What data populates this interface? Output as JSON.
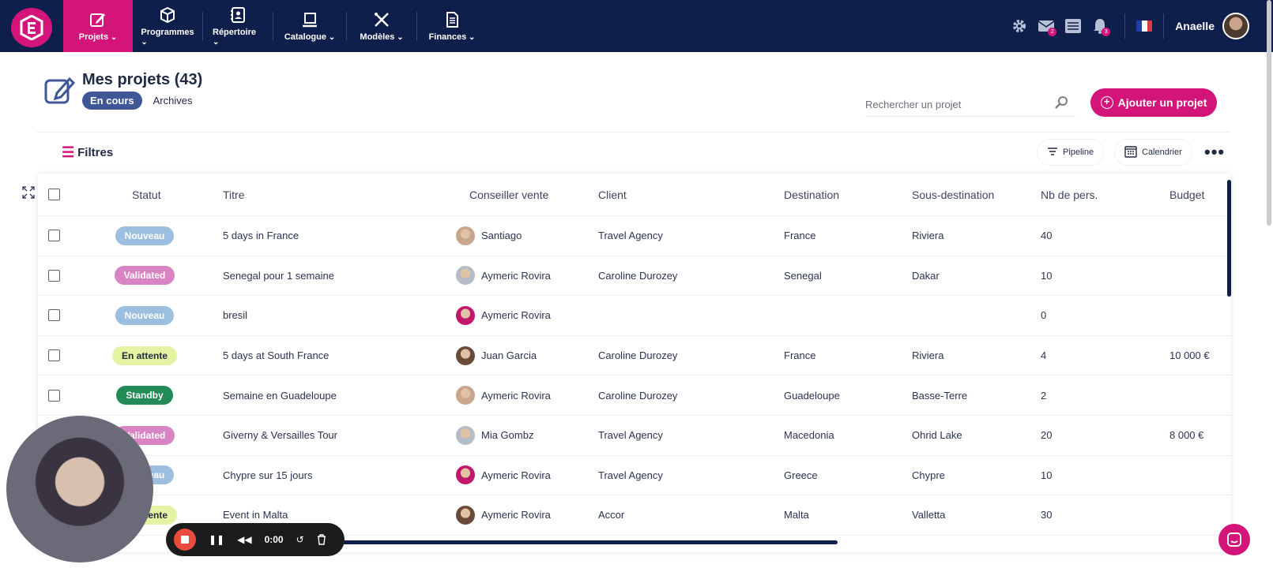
{
  "nav": {
    "items": [
      {
        "label": "Projets",
        "icon": "edit-icon"
      },
      {
        "label": "Programmes",
        "icon": "cube-icon"
      },
      {
        "label": "Répertoire",
        "icon": "address-book-icon"
      },
      {
        "label": "Catalogue",
        "icon": "laptop-icon"
      },
      {
        "label": "Modèles",
        "icon": "tools-icon"
      },
      {
        "label": "Finances",
        "icon": "document-icon"
      }
    ],
    "mail_badge": "2",
    "notif_badge": "3",
    "user_name": "Anaelle"
  },
  "page": {
    "title": "Mes projets (43)",
    "tab_active": "En cours",
    "tab_other": "Archives"
  },
  "search": {
    "placeholder": "Rechercher un projet"
  },
  "toolbar": {
    "add_label": "Ajouter un projet",
    "filters_label": "Filtres",
    "pipeline_label": "Pipeline",
    "calendar_label": "Calendrier"
  },
  "table": {
    "headers": {
      "status": "Statut",
      "title": "Titre",
      "advisor": "Conseiller vente",
      "client": "Client",
      "destination": "Destination",
      "subdestination": "Sous-destination",
      "people": "Nb de pers.",
      "budget": "Budget"
    },
    "rows": [
      {
        "status": "Nouveau",
        "status_color": "#9cbfe0",
        "title": "5 days in France",
        "advisor": "Santiago",
        "client": "Travel Agency",
        "destination": "France",
        "subdestination": "Riviera",
        "people": "40",
        "budget": ""
      },
      {
        "status": "Validated",
        "status_color": "#d883c3",
        "title": "Senegal pour 1 semaine",
        "advisor": "Aymeric Rovira",
        "client": "Caroline Durozey",
        "destination": "Senegal",
        "subdestination": "Dakar",
        "people": "10",
        "budget": ""
      },
      {
        "status": "Nouveau",
        "status_color": "#9cbfe0",
        "title": "bresil",
        "advisor": "Aymeric Rovira",
        "client": "",
        "destination": "",
        "subdestination": "",
        "people": "0",
        "budget": ""
      },
      {
        "status": "En attente",
        "status_color": "#e4f3a3",
        "title": "5 days at South France",
        "advisor": "Juan Garcia",
        "client": "Caroline Durozey",
        "destination": "France",
        "subdestination": "Riviera",
        "people": "4",
        "budget": "10 000 €"
      },
      {
        "status": "Standby",
        "status_color": "#228a55",
        "title": "Semaine en Guadeloupe",
        "advisor": "Aymeric Rovira",
        "client": "Caroline Durozey",
        "destination": "Guadeloupe",
        "subdestination": "Basse-Terre",
        "people": "2",
        "budget": ""
      },
      {
        "status": "Validated",
        "status_color": "#d883c3",
        "title": "Giverny & Versailles Tour",
        "advisor": "Mia Gombz",
        "client": "Travel Agency",
        "destination": "Macedonia",
        "subdestination": "Ohrid Lake",
        "people": "20",
        "budget": "8 000 €"
      },
      {
        "status": "Nouveau",
        "status_color": "#9cbfe0",
        "title": "Chypre sur 15 jours",
        "advisor": "Aymeric Rovira",
        "client": "Travel Agency",
        "destination": "Greece",
        "subdestination": "Chypre",
        "people": "10",
        "budget": ""
      },
      {
        "status": "En attente",
        "status_color": "#e4f3a3",
        "title": "Event in Malta",
        "advisor": "Aymeric Rovira",
        "client": "Accor",
        "destination": "Malta",
        "subdestination": "Valletta",
        "people": "30",
        "budget": ""
      }
    ]
  },
  "recorder": {
    "time": "0:00"
  },
  "colors": {
    "brand": "#d3157a",
    "navy": "#0f1f4b",
    "accent_blue": "#3f5797"
  }
}
